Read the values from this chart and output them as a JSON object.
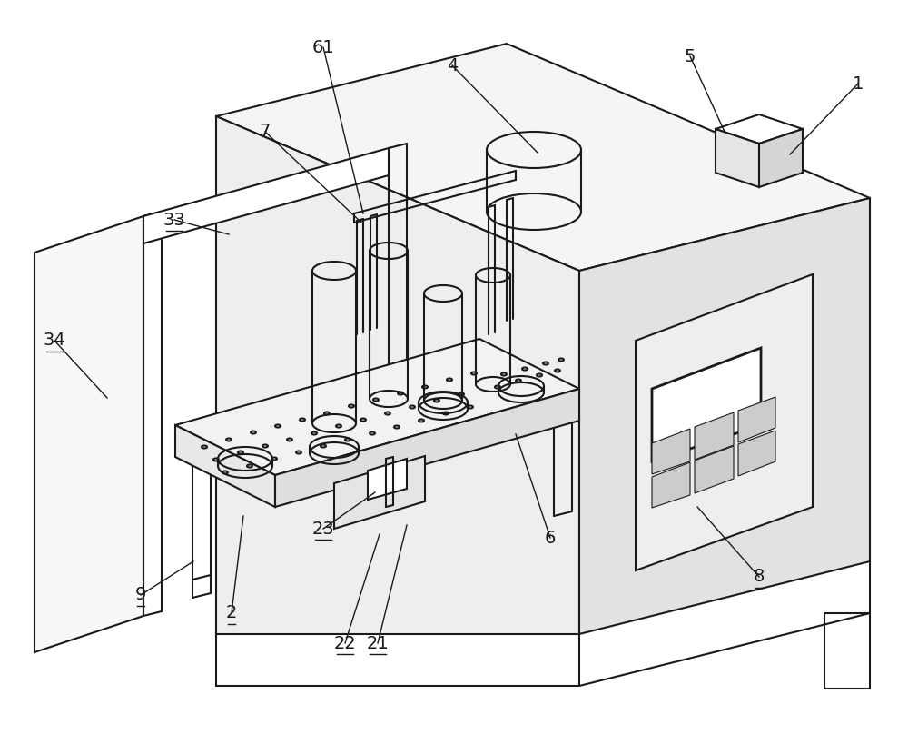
{
  "bg_color": "#ffffff",
  "line_color": "#1a1a1a",
  "line_width": 1.5,
  "label_fontsize": 14,
  "fig_width": 10.0,
  "fig_height": 8.08,
  "labels_data": [
    [
      "1",
      945,
      92,
      870,
      170,
      false
    ],
    [
      "4",
      498,
      72,
      592,
      168,
      false
    ],
    [
      "5",
      760,
      62,
      798,
      145,
      false
    ],
    [
      "61",
      356,
      52,
      400,
      235,
      false
    ],
    [
      "7",
      292,
      145,
      398,
      245,
      false
    ],
    [
      "33",
      192,
      242,
      252,
      258,
      true
    ],
    [
      "34",
      60,
      375,
      118,
      438,
      true
    ],
    [
      "9",
      155,
      655,
      213,
      618,
      true
    ],
    [
      "2",
      255,
      675,
      268,
      568,
      true
    ],
    [
      "22",
      380,
      708,
      418,
      588,
      true
    ],
    [
      "21",
      416,
      708,
      448,
      578,
      true
    ],
    [
      "23",
      356,
      582,
      413,
      542,
      true
    ],
    [
      "8",
      836,
      635,
      768,
      558,
      true
    ],
    [
      "6",
      606,
      592,
      568,
      478,
      false
    ]
  ]
}
